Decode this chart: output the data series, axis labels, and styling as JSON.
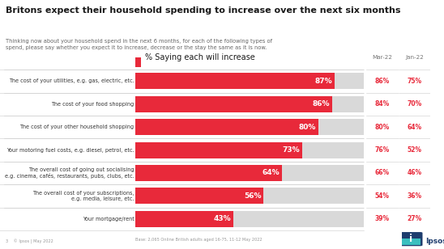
{
  "title": "Britons expect their household spending to increase over the next six months",
  "subtitle": "Thinking now about your household spend in the next 6 months, for each of the following types of\nspend, please say whether you expect it to increase, decrease or the stay the same as it is now.",
  "col_header": "% Saying each will increase",
  "col1_header": "Mar-22",
  "col2_header": "Jan-22",
  "categories": [
    "The cost of your utilities, e.g. gas, electric, etc.",
    "The cost of your food shopping",
    "The cost of your other household shopping",
    "Your motoring fuel costs, e.g. diesel, petrol, etc.",
    "The overall cost of going out socialising\ne.g. cinema, cafés, restaurants, pubs, clubs, etc.",
    "The overall cost of your subscriptions,\ne.g. media, leisure, etc.",
    "Your mortgage/rent"
  ],
  "values": [
    87,
    86,
    80,
    73,
    64,
    56,
    43
  ],
  "mar22": [
    86,
    84,
    80,
    76,
    66,
    54,
    39
  ],
  "jan22": [
    75,
    70,
    64,
    52,
    46,
    36,
    27
  ],
  "bar_color": "#e8293a",
  "bar_bg_color": "#d9d9d9",
  "max_bar": 100,
  "footer": "Base: 2,065 Online British adults aged 16-75, 11-12 May 2022",
  "page_footer": "3    © Ipsos | May 2022",
  "background_color": "#ffffff",
  "title_color": "#1a1a1a",
  "subtitle_color": "#666666",
  "label_color": "#333333",
  "compare_color": "#e8293a",
  "header_bar_color": "#e8293a",
  "grid_color": "#cccccc",
  "col_header_color": "#1a1a1a"
}
